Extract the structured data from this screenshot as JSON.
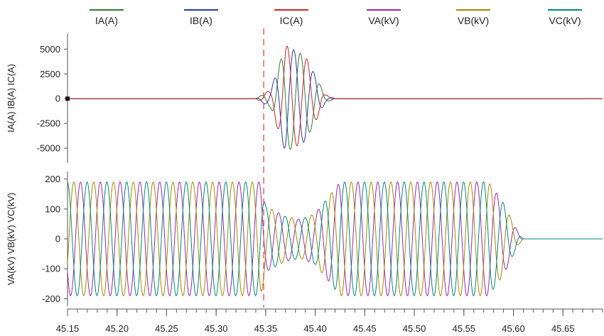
{
  "chart_data": {
    "type": "line",
    "xlim": [
      45.15,
      45.69
    ],
    "x_ticks": [
      "45.15",
      "45.20",
      "45.25",
      "45.30",
      "45.35",
      "45.40",
      "45.45",
      "45.50",
      "45.55",
      "45.60",
      "45.65"
    ],
    "cursor_x": 45.348,
    "legend_placement": "top",
    "legend": [
      {
        "name": "IA(A)",
        "color": "#2e7d32"
      },
      {
        "name": "IB(A)",
        "color": "#2b3aa8"
      },
      {
        "name": "IC(A)",
        "color": "#c62828"
      },
      {
        "name": "VA(kV)",
        "color": "#9c27b0"
      },
      {
        "name": "VB(kV)",
        "color": "#a58a00"
      },
      {
        "name": "VC(kV)",
        "color": "#00897b"
      }
    ],
    "panels": [
      {
        "ylabel": "IA(A) IB(A) IC(A)",
        "ylim": [
          -6500,
          6600
        ],
        "y_ticks": [
          "5000",
          "2500",
          "0",
          "-2500",
          "-5000"
        ],
        "series": [
          {
            "name": "IA(A)",
            "color": "#2e7d32",
            "peak": 5400,
            "envelope": [
              [
                45.15,
                0
              ],
              [
                45.34,
                0
              ],
              [
                45.355,
                900
              ],
              [
                45.37,
                5400
              ],
              [
                45.39,
                4300
              ],
              [
                45.41,
                400
              ],
              [
                45.42,
                0
              ],
              [
                45.69,
                0
              ]
            ]
          },
          {
            "name": "IB(A)",
            "color": "#2b3aa8",
            "peak": 5400,
            "envelope": [
              [
                45.15,
                0
              ],
              [
                45.34,
                0
              ],
              [
                45.355,
                900
              ],
              [
                45.37,
                5400
              ],
              [
                45.39,
                4300
              ],
              [
                45.41,
                400
              ],
              [
                45.42,
                0
              ],
              [
                45.69,
                0
              ]
            ]
          },
          {
            "name": "IC(A)",
            "color": "#c62828",
            "peak": 5400,
            "envelope": [
              [
                45.15,
                0
              ],
              [
                45.34,
                0
              ],
              [
                45.355,
                900
              ],
              [
                45.37,
                5400
              ],
              [
                45.39,
                4300
              ],
              [
                45.41,
                400
              ],
              [
                45.42,
                0
              ],
              [
                45.69,
                0
              ]
            ]
          }
        ]
      },
      {
        "ylabel": "VA(kV) VB(kV) VC(kV)",
        "ylim": [
          -225,
          225
        ],
        "y_ticks": [
          "200",
          "100",
          "0",
          "-100",
          "-200"
        ],
        "series": [
          {
            "name": "VA(kV)",
            "color": "#9c27b0",
            "peak": 190,
            "envelope": [
              [
                45.15,
                190
              ],
              [
                45.345,
                190
              ],
              [
                45.35,
                110
              ],
              [
                45.37,
                75
              ],
              [
                45.385,
                65
              ],
              [
                45.4,
                85
              ],
              [
                45.425,
                190
              ],
              [
                45.575,
                190
              ],
              [
                45.59,
                120
              ],
              [
                45.605,
                20
              ],
              [
                45.61,
                0
              ],
              [
                45.69,
                0
              ]
            ]
          },
          {
            "name": "VB(kV)",
            "color": "#a58a00",
            "peak": 190,
            "envelope": [
              [
                45.15,
                190
              ],
              [
                45.345,
                190
              ],
              [
                45.35,
                110
              ],
              [
                45.37,
                75
              ],
              [
                45.385,
                65
              ],
              [
                45.4,
                85
              ],
              [
                45.425,
                190
              ],
              [
                45.575,
                190
              ],
              [
                45.59,
                120
              ],
              [
                45.605,
                20
              ],
              [
                45.61,
                0
              ],
              [
                45.69,
                0
              ]
            ]
          },
          {
            "name": "VC(kV)",
            "color": "#00897b",
            "peak": 190,
            "envelope": [
              [
                45.15,
                190
              ],
              [
                45.345,
                190
              ],
              [
                45.35,
                110
              ],
              [
                45.37,
                75
              ],
              [
                45.385,
                65
              ],
              [
                45.4,
                85
              ],
              [
                45.425,
                190
              ],
              [
                45.575,
                190
              ],
              [
                45.59,
                120
              ],
              [
                45.605,
                20
              ],
              [
                45.61,
                0
              ],
              [
                45.69,
                0
              ]
            ]
          }
        ]
      }
    ]
  }
}
